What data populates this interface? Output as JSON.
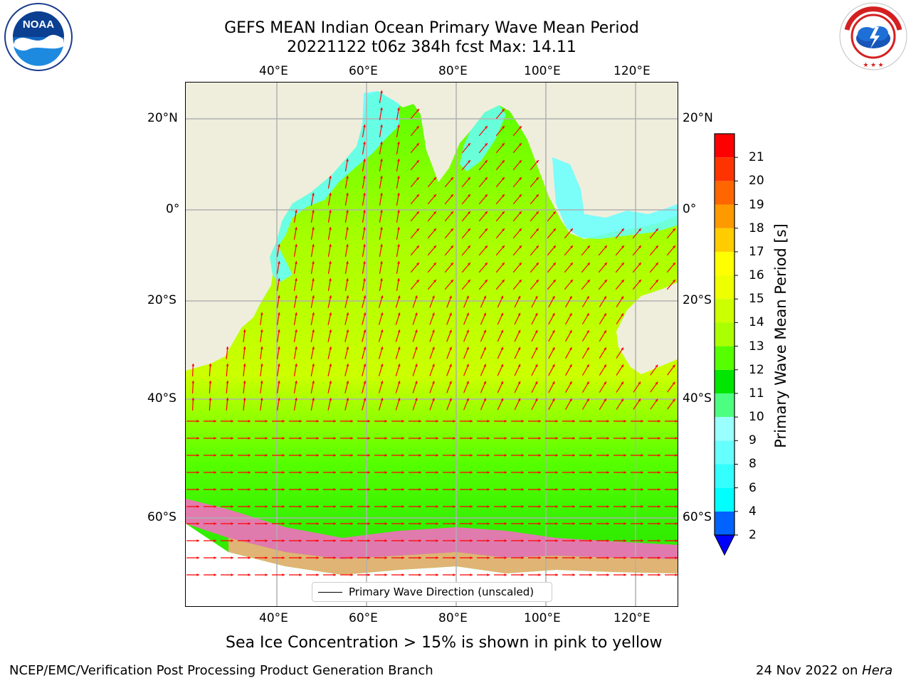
{
  "header": {
    "title": "GEFS MEAN Indian Ocean Primary Wave Mean Period",
    "subtitle": "20221122 t06z 384h fcst   Max: 14.11"
  },
  "logos": {
    "left": {
      "name": "NOAA",
      "ring_text": "NATIONAL OCEANIC AND ATMOSPHERIC ADMINISTRATION · U.S. DEPARTMENT OF COMMERCE"
    },
    "right": {
      "name": "NATIONAL WEATHER SERVICE"
    }
  },
  "map": {
    "lon_labels": [
      "40°E",
      "60°E",
      "80°E",
      "100°E",
      "120°E"
    ],
    "lat_labels": [
      "20°N",
      "0°",
      "20°S",
      "40°S",
      "60°S"
    ],
    "legend_label": "Primary Wave Direction (unscaled)",
    "colors": {
      "land": "#efeedd",
      "arrow": "#ff0000",
      "grid": "#b0b0b0"
    }
  },
  "colorbar": {
    "title": "Primary Wave Mean Period [s]",
    "ticks": [
      "2",
      "4",
      "6",
      "8",
      "9",
      "10",
      "11",
      "12",
      "13",
      "14",
      "15",
      "16",
      "17",
      "18",
      "19",
      "20",
      "21"
    ],
    "colors": [
      "#0063ff",
      "#00ffff",
      "#33ffff",
      "#66ffff",
      "#99ffff",
      "#4dff80",
      "#00e600",
      "#55ff00",
      "#aaff00",
      "#ccff00",
      "#eeff00",
      "#ffff00",
      "#ffcc00",
      "#ff9900",
      "#ff6600",
      "#ff3300",
      "#ff0000"
    ],
    "extend_color": "#0000ff"
  },
  "footer": {
    "caption": "Sea Ice Concentration > 15% is shown in pink to yellow",
    "left": "NCEP/EMC/Verification Post Processing Product Generation Branch",
    "right_prefix": "24 Nov 2022 on ",
    "right_machine": "Hera"
  }
}
